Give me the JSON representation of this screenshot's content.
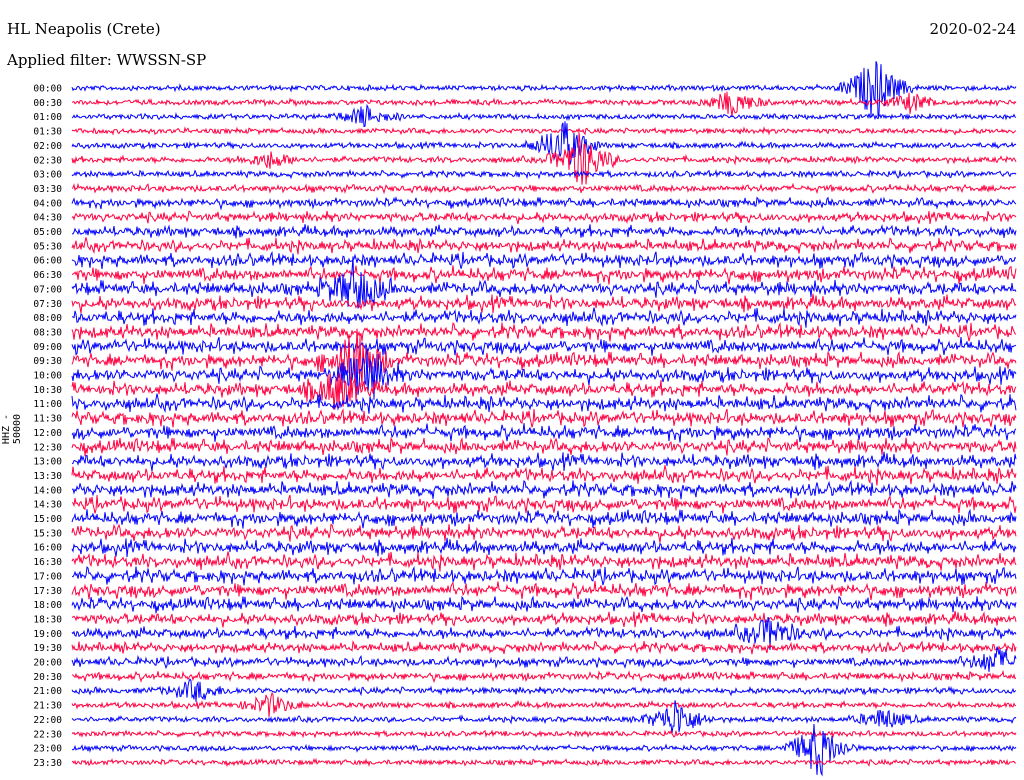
{
  "header": {
    "station": "HL Neapolis (Crete)",
    "date": "2020-02-24",
    "filter_text": "Applied filter: WWSSN-SP"
  },
  "axis": {
    "ylabel": "HHZ - 50000"
  },
  "colors": {
    "even": "#0000ff",
    "odd": "#ff0040"
  },
  "chart_data": {
    "type": "line",
    "rows": [
      "00:00",
      "00:30",
      "01:00",
      "01:30",
      "02:00",
      "02:30",
      "03:00",
      "03:30",
      "04:00",
      "04:30",
      "05:00",
      "05:30",
      "06:00",
      "06:30",
      "07:00",
      "07:30",
      "08:00",
      "08:30",
      "09:00",
      "09:30",
      "10:00",
      "10:30",
      "11:00",
      "11:30",
      "12:00",
      "12:30",
      "13:00",
      "13:30",
      "14:00",
      "14:30",
      "15:00",
      "15:30",
      "16:00",
      "16:30",
      "17:00",
      "17:30",
      "18:00",
      "18:30",
      "19:00",
      "19:30",
      "20:00",
      "20:30",
      "21:00",
      "21:30",
      "22:00",
      "22:30",
      "23:00",
      "23:30"
    ],
    "noise_level": [
      0.12,
      0.12,
      0.12,
      0.12,
      0.14,
      0.16,
      0.16,
      0.2,
      0.3,
      0.35,
      0.4,
      0.45,
      0.5,
      0.55,
      0.55,
      0.55,
      0.55,
      0.55,
      0.55,
      0.55,
      0.55,
      0.55,
      0.55,
      0.55,
      0.55,
      0.55,
      0.55,
      0.55,
      0.55,
      0.55,
      0.55,
      0.55,
      0.55,
      0.55,
      0.55,
      0.55,
      0.5,
      0.45,
      0.4,
      0.35,
      0.3,
      0.25,
      0.18,
      0.15,
      0.13,
      0.12,
      0.12,
      0.12
    ],
    "events": [
      {
        "row": 0,
        "t": 0.85,
        "amp": 2.5
      },
      {
        "row": 1,
        "t": 0.7,
        "amp": 1.0
      },
      {
        "row": 1,
        "t": 0.89,
        "amp": 0.7
      },
      {
        "row": 2,
        "t": 0.31,
        "amp": 0.8
      },
      {
        "row": 4,
        "t": 0.52,
        "amp": 2.0
      },
      {
        "row": 5,
        "t": 0.54,
        "amp": 2.2
      },
      {
        "row": 5,
        "t": 0.21,
        "amp": 0.6
      },
      {
        "row": 14,
        "t": 0.3,
        "amp": 2.0
      },
      {
        "row": 19,
        "t": 0.3,
        "amp": 2.5
      },
      {
        "row": 20,
        "t": 0.31,
        "amp": 2.2
      },
      {
        "row": 21,
        "t": 0.28,
        "amp": 1.5
      },
      {
        "row": 38,
        "t": 0.74,
        "amp": 1.2
      },
      {
        "row": 40,
        "t": 0.98,
        "amp": 1.0
      },
      {
        "row": 42,
        "t": 0.13,
        "amp": 0.8
      },
      {
        "row": 43,
        "t": 0.21,
        "amp": 0.8
      },
      {
        "row": 44,
        "t": 0.64,
        "amp": 1.5
      },
      {
        "row": 44,
        "t": 0.86,
        "amp": 0.8
      },
      {
        "row": 46,
        "t": 0.79,
        "amp": 2.2
      }
    ]
  }
}
